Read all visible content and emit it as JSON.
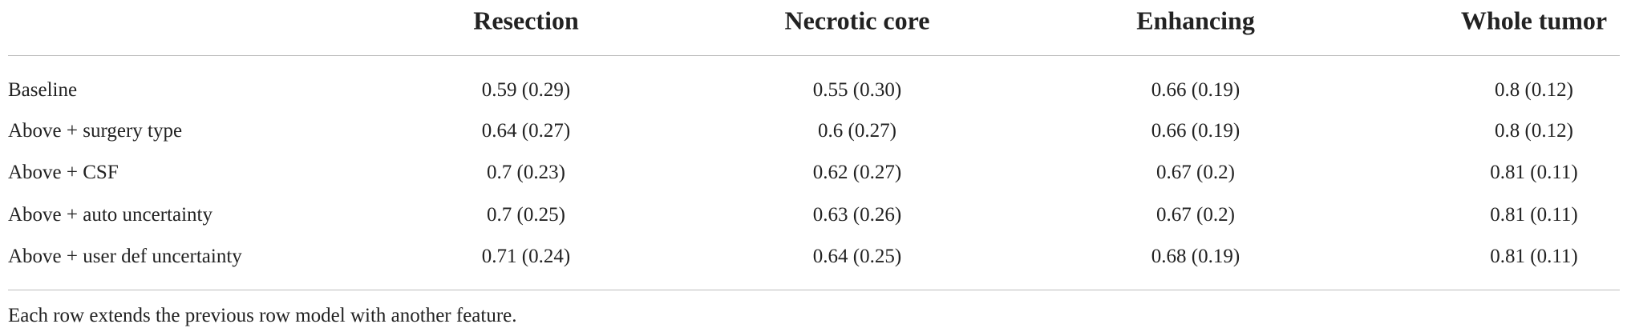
{
  "table": {
    "header": [
      "Resection",
      "Necrotic core",
      "Enhancing",
      "Whole tumor"
    ],
    "rows": [
      [
        "Baseline",
        "0.59 (0.29)",
        "0.55 (0.30)",
        "0.66 (0.19)",
        "0.8 (0.12)"
      ],
      [
        "Above + surgery type",
        "0.64 (0.27)",
        "0.6 (0.27)",
        "0.66 (0.19)",
        "0.8 (0.12)"
      ],
      [
        "Above + CSF",
        "0.7 (0.23)",
        "0.62 (0.27)",
        "0.67 (0.2)",
        "0.81 (0.11)"
      ],
      [
        "Above + auto uncertainty",
        "0.7 (0.25)",
        "0.63 (0.26)",
        "0.67 (0.2)",
        "0.81 (0.11)"
      ],
      [
        "Above + user def uncertainty",
        "0.71 (0.24)",
        "0.64 (0.25)",
        "0.68 (0.19)",
        "0.81 (0.11)"
      ]
    ],
    "footnote": "Each row extends the previous row model with another feature."
  }
}
